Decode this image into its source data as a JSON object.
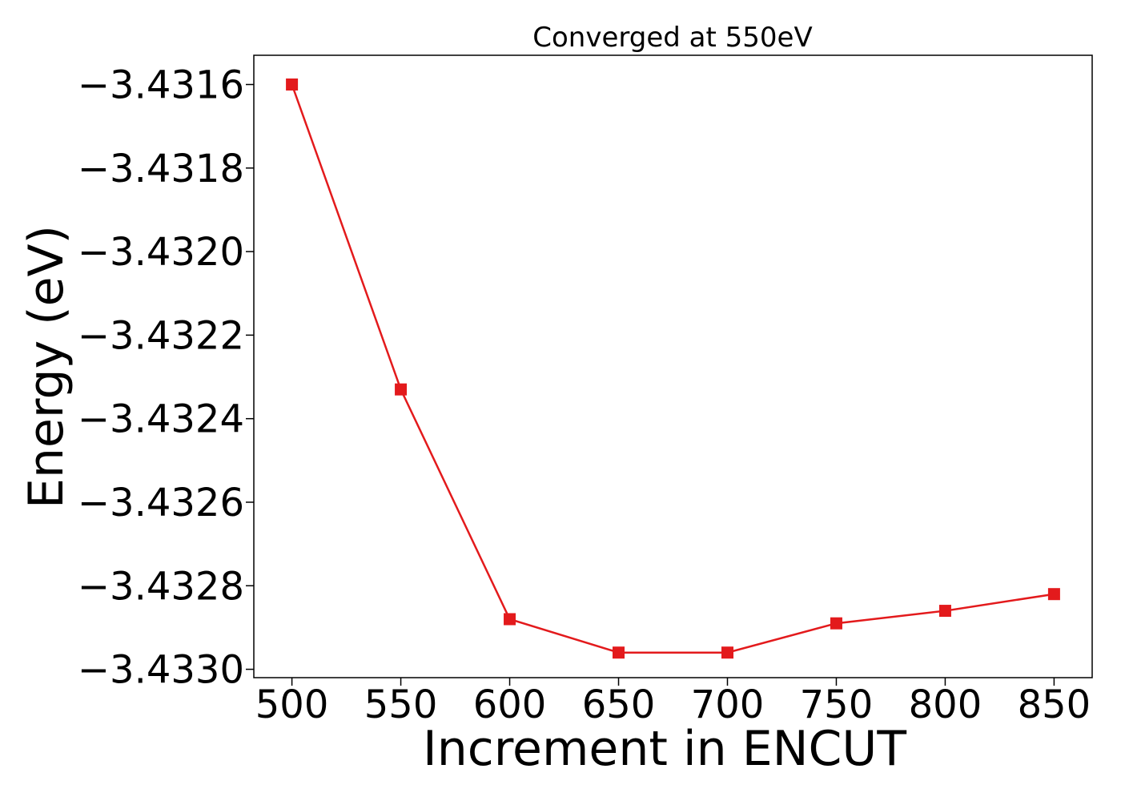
{
  "chart_data": {
    "type": "line",
    "title": "Converged at 550eV",
    "xlabel": "Increment in ENCUT",
    "ylabel": "Energy (eV)",
    "x": [
      500,
      550,
      600,
      650,
      700,
      750,
      800,
      850
    ],
    "series": [
      {
        "values": [
          -3.4316,
          -3.43233,
          -3.43288,
          -3.43296,
          -3.43296,
          -3.43289,
          -3.43286,
          -3.43282
        ],
        "color": "#e31a1c",
        "marker": "square"
      }
    ],
    "xticks": [
      500,
      550,
      600,
      650,
      700,
      750,
      800,
      850
    ],
    "xtick_labels": [
      "500",
      "550",
      "600",
      "650",
      "700",
      "750",
      "800",
      "850"
    ],
    "yticks": [
      -3.4316,
      -3.4318,
      -3.432,
      -3.4322,
      -3.4324,
      -3.4326,
      -3.4328,
      -3.433
    ],
    "ytick_labels": [
      "−3.4316",
      "−3.4318",
      "−3.4320",
      "−3.4322",
      "−3.4324",
      "−3.4326",
      "−3.4328",
      "−3.4330"
    ],
    "xlim": [
      482.5,
      867.5
    ],
    "ylim": [
      -3.43302,
      -3.43153
    ],
    "grid": false,
    "legend": "none"
  }
}
